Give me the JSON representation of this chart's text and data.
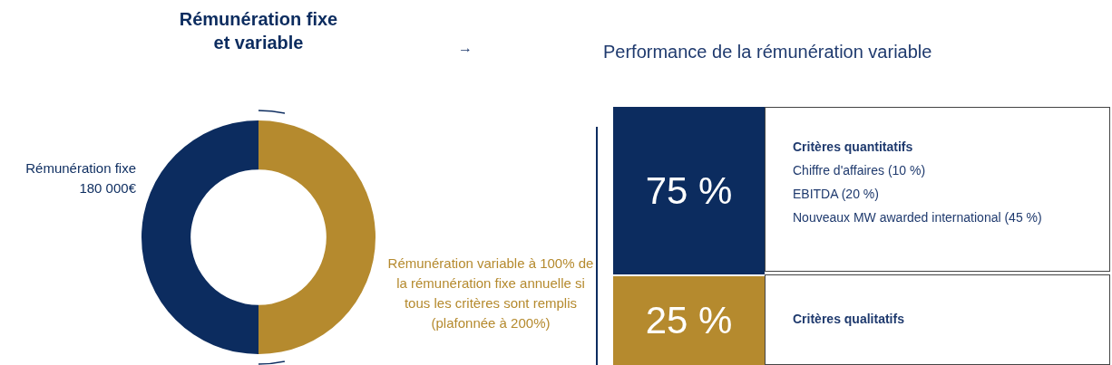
{
  "chart_data": [
    {
      "type": "donut",
      "title": "Rémunération fixe et variable",
      "categories": [
        "Rémunération fixe 180 000€",
        "Rémunération variable à 100% de la rémunération fixe annuelle si tous les critères sont remplis (plafonnée à 200%)"
      ],
      "values": [
        50,
        50
      ],
      "colors": [
        "#0c2c5f",
        "#b58a2e"
      ],
      "legend": false,
      "annotations": [
        "→"
      ]
    },
    {
      "type": "other",
      "title": "Performance de la rémunération variable",
      "colors": [
        "#0c2c5f",
        "#b58a2e"
      ],
      "annotations": [
        "75 %",
        "Critères quantitatifs",
        "Chiffre d'affaires (10 %)",
        "EBITDA (20 %)",
        "Nouveaux MW awarded international (45 %)",
        "25 %",
        "Critères qualitatifs"
      ]
    }
  ]
}
